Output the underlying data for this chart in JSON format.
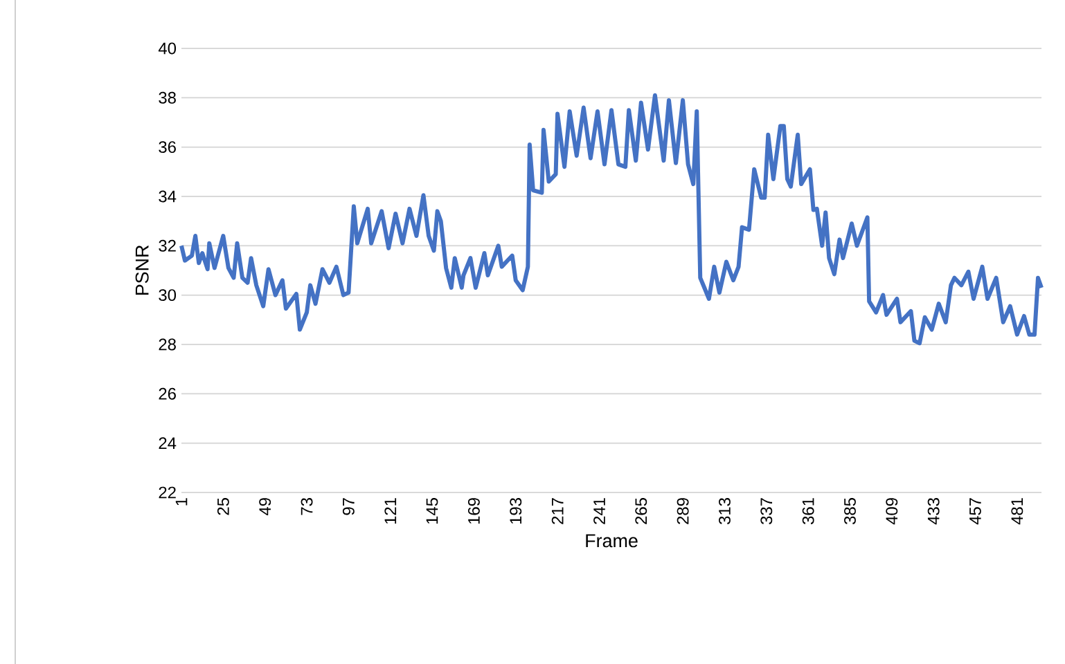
{
  "chart_data": {
    "type": "line",
    "xlabel": "Frame",
    "ylabel": "PSNR",
    "xlim": [
      1,
      495
    ],
    "ylim": [
      22,
      40
    ],
    "xticks": [
      1,
      25,
      49,
      73,
      97,
      121,
      145,
      169,
      193,
      217,
      241,
      265,
      289,
      313,
      337,
      361,
      385,
      409,
      433,
      457,
      481
    ],
    "yticks": [
      22,
      24,
      26,
      28,
      30,
      32,
      34,
      36,
      38,
      40
    ],
    "grid": "y",
    "series": [
      {
        "color": "#4472c4",
        "x": [
          1,
          3,
          7,
          9,
          11,
          13,
          16,
          17,
          20,
          25,
          28,
          31,
          33,
          36,
          39,
          41,
          44,
          48,
          51,
          55,
          59,
          61,
          67,
          69,
          73,
          75,
          78,
          82,
          86,
          90,
          94,
          97,
          100,
          102,
          108,
          110,
          116,
          120,
          124,
          128,
          132,
          136,
          140,
          143,
          146,
          148,
          150,
          153,
          156,
          158,
          162,
          163,
          167,
          170,
          175,
          177,
          183,
          185,
          191,
          193,
          197,
          200,
          201,
          203,
          208,
          209,
          212,
          216,
          217,
          221,
          224,
          228,
          232,
          236,
          240,
          244,
          248,
          252,
          256,
          258,
          262,
          265,
          269,
          273,
          278,
          281,
          285,
          289,
          292,
          295,
          297,
          299,
          304,
          307,
          310,
          314,
          318,
          321,
          323,
          327,
          330,
          334,
          336,
          338,
          341,
          345,
          347,
          349,
          351,
          355,
          357,
          362,
          364,
          366,
          369,
          371,
          373,
          376,
          379,
          381,
          386,
          389,
          395,
          396,
          400,
          404,
          406,
          412,
          414,
          420,
          422,
          425,
          428,
          432,
          436,
          440,
          443,
          445,
          449,
          453,
          456,
          461,
          464,
          469,
          473,
          477,
          481,
          485,
          488,
          491,
          493,
          495
        ],
        "values": [
          32.0,
          31.4,
          31.6,
          32.4,
          31.3,
          31.7,
          31.05,
          32.1,
          31.1,
          32.4,
          31.1,
          30.7,
          32.1,
          30.7,
          30.5,
          31.5,
          30.4,
          29.55,
          31.05,
          30.0,
          30.6,
          29.45,
          30.05,
          28.6,
          29.3,
          30.4,
          29.65,
          31.05,
          30.5,
          31.15,
          30.0,
          30.1,
          33.6,
          32.1,
          33.5,
          32.1,
          33.4,
          31.9,
          33.3,
          32.1,
          33.5,
          32.4,
          34.05,
          32.4,
          31.8,
          33.4,
          33.0,
          31.1,
          30.3,
          31.5,
          30.3,
          30.8,
          31.5,
          30.3,
          31.7,
          30.8,
          32.0,
          31.15,
          31.6,
          30.6,
          30.2,
          31.15,
          36.1,
          34.25,
          34.15,
          36.7,
          34.6,
          34.9,
          37.35,
          35.2,
          37.45,
          35.65,
          37.6,
          35.55,
          37.45,
          35.3,
          37.5,
          35.3,
          35.2,
          37.5,
          35.45,
          37.8,
          35.9,
          38.1,
          35.45,
          37.9,
          35.35,
          37.9,
          35.3,
          34.5,
          37.45,
          30.7,
          29.85,
          31.15,
          30.1,
          31.35,
          30.6,
          31.15,
          32.75,
          32.65,
          35.1,
          33.95,
          33.95,
          36.5,
          34.7,
          36.85,
          36.85,
          34.7,
          34.4,
          36.5,
          34.5,
          35.1,
          33.45,
          33.5,
          32.0,
          33.35,
          31.5,
          30.85,
          32.25,
          31.5,
          32.9,
          32.0,
          33.15,
          29.75,
          29.3,
          30.0,
          29.2,
          29.85,
          28.9,
          29.35,
          28.15,
          28.05,
          29.1,
          28.6,
          29.65,
          28.9,
          30.4,
          30.7,
          30.4,
          30.95,
          29.85,
          31.15,
          29.85,
          30.7,
          28.9,
          29.55,
          28.4,
          29.15,
          28.4,
          28.4,
          30.7,
          30.3
        ]
      }
    ]
  }
}
